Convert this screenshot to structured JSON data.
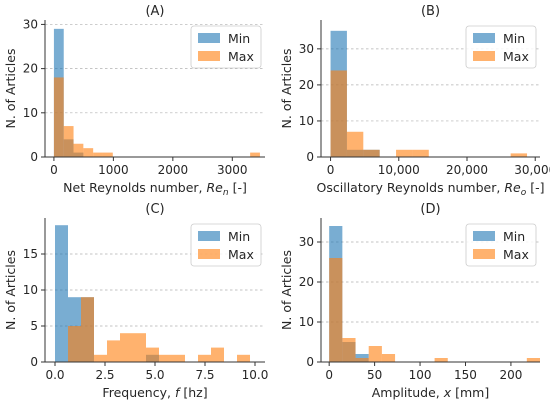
{
  "colors": {
    "min": "#1f77b4",
    "max": "#ff7f0e",
    "grid": "#b0b0b0",
    "axis": "#333333"
  },
  "chart_data": [
    {
      "type": "histogram",
      "title": "(A)",
      "xlabel": "Net Reynolds number, ",
      "xlabel_var": "Re",
      "xlabel_sub": "n",
      "xlabel_tail": " [-]",
      "ylabel": "N. of Articles",
      "xlim": [
        -150,
        3550
      ],
      "ylim": [
        0,
        31
      ],
      "xticks": [
        0,
        1000,
        2000,
        3000
      ],
      "xtick_labels": [
        "0",
        "1000",
        "2000",
        "3000"
      ],
      "yticks": [
        0,
        10,
        20,
        30
      ],
      "ytick_labels": [
        "0",
        "10",
        "20",
        "30"
      ],
      "grid": "horizontal dashed",
      "legend": {
        "position": "top-right",
        "entries": [
          "Min",
          "Max"
        ]
      },
      "series": [
        {
          "name": "Min",
          "bins": [
            [
              0,
              165,
              29
            ],
            [
              165,
              330,
              4
            ],
            [
              330,
              495,
              1
            ],
            [
              495,
              660,
              0
            ]
          ]
        },
        {
          "name": "Max",
          "bins": [
            [
              0,
              165,
              18
            ],
            [
              165,
              330,
              7
            ],
            [
              330,
              495,
              3
            ],
            [
              495,
              660,
              2
            ],
            [
              660,
              825,
              1
            ],
            [
              825,
              990,
              1
            ],
            [
              3300,
              3465,
              1
            ]
          ]
        }
      ]
    },
    {
      "type": "histogram",
      "title": "(B)",
      "xlabel": "Oscillatory Reynolds number, ",
      "xlabel_var": "Re",
      "xlabel_sub": "o",
      "xlabel_tail": " [-]",
      "ylabel": "N. of Articles",
      "xlim": [
        -1400,
        30700
      ],
      "ylim": [
        0,
        38
      ],
      "xticks": [
        0,
        10000,
        20000,
        30000
      ],
      "xtick_labels": [
        "0",
        "10,000",
        "20,000",
        "30,000"
      ],
      "yticks": [
        0,
        10,
        20,
        30
      ],
      "ytick_labels": [
        "0",
        "10",
        "20",
        "30"
      ],
      "grid": "horizontal dashed",
      "legend": {
        "position": "top-right",
        "entries": [
          "Min",
          "Max"
        ]
      },
      "series": [
        {
          "name": "Min",
          "bins": [
            [
              0,
              2400,
              35
            ],
            [
              2400,
              4800,
              2
            ],
            [
              4800,
              7200,
              2
            ],
            [
              7200,
              9600,
              0
            ]
          ]
        },
        {
          "name": "Max",
          "bins": [
            [
              0,
              2400,
              24
            ],
            [
              2400,
              4800,
              7
            ],
            [
              4800,
              7200,
              2
            ],
            [
              9600,
              12000,
              2
            ],
            [
              12000,
              14400,
              2
            ],
            [
              26400,
              28800,
              1
            ]
          ]
        }
      ]
    },
    {
      "type": "histogram",
      "title": "(C)",
      "xlabel": "Frequency, ",
      "xlabel_var": "f",
      "xlabel_sub": "",
      "xlabel_tail": " [hz]",
      "ylabel": "N. of Articles",
      "xlim": [
        -0.5,
        10.5
      ],
      "ylim": [
        0,
        20
      ],
      "xticks": [
        0,
        2.5,
        5,
        7.5,
        10
      ],
      "xtick_labels": [
        "0.0",
        "2.5",
        "5.0",
        "7.5",
        "10.0"
      ],
      "yticks": [
        0,
        5,
        10,
        15
      ],
      "ytick_labels": [
        "0",
        "5",
        "10",
        "15"
      ],
      "grid": "horizontal dashed",
      "legend": {
        "position": "top-right",
        "entries": [
          "Min",
          "Max"
        ]
      },
      "series": [
        {
          "name": "Min",
          "bins": [
            [
              0,
              0.65,
              19
            ],
            [
              0.65,
              1.3,
              9
            ],
            [
              1.3,
              1.95,
              9
            ],
            [
              1.95,
              2.6,
              0
            ],
            [
              4.55,
              5.2,
              1
            ]
          ]
        },
        {
          "name": "Max",
          "bins": [
            [
              0.65,
              1.3,
              5
            ],
            [
              1.3,
              1.95,
              9
            ],
            [
              1.95,
              2.6,
              1
            ],
            [
              2.6,
              3.25,
              3
            ],
            [
              3.25,
              3.9,
              4
            ],
            [
              3.9,
              4.55,
              4
            ],
            [
              4.55,
              5.2,
              2
            ],
            [
              5.2,
              5.85,
              1
            ],
            [
              5.85,
              6.5,
              1
            ],
            [
              7.15,
              7.8,
              1
            ],
            [
              7.8,
              8.45,
              2
            ],
            [
              9.1,
              9.75,
              1
            ]
          ]
        }
      ]
    },
    {
      "type": "histogram",
      "title": "(D)",
      "xlabel": "Amplitude, ",
      "xlabel_var": "x",
      "xlabel_sub": "",
      "xlabel_tail": " [mm]",
      "ylabel": "N. of Articles",
      "xlim": [
        -9,
        232
      ],
      "ylim": [
        0,
        36
      ],
      "xticks": [
        0,
        50,
        100,
        150,
        200
      ],
      "xtick_labels": [
        "0",
        "50",
        "100",
        "150",
        "200"
      ],
      "yticks": [
        0,
        10,
        20,
        30
      ],
      "ytick_labels": [
        "0",
        "10",
        "20",
        "30"
      ],
      "grid": "horizontal dashed",
      "legend": {
        "position": "top-right",
        "entries": [
          "Min",
          "Max"
        ]
      },
      "series": [
        {
          "name": "Min",
          "bins": [
            [
              0,
              14.5,
              34
            ],
            [
              14.5,
              29,
              5
            ],
            [
              29,
              43.5,
              2
            ],
            [
              43.5,
              58,
              0
            ]
          ]
        },
        {
          "name": "Max",
          "bins": [
            [
              0,
              14.5,
              26
            ],
            [
              14.5,
              29,
              6
            ],
            [
              29,
              43.5,
              1
            ],
            [
              43.5,
              58,
              4
            ],
            [
              58,
              72.5,
              2
            ],
            [
              116,
              130.5,
              1
            ],
            [
              217.5,
              232,
              1
            ]
          ]
        }
      ]
    }
  ]
}
